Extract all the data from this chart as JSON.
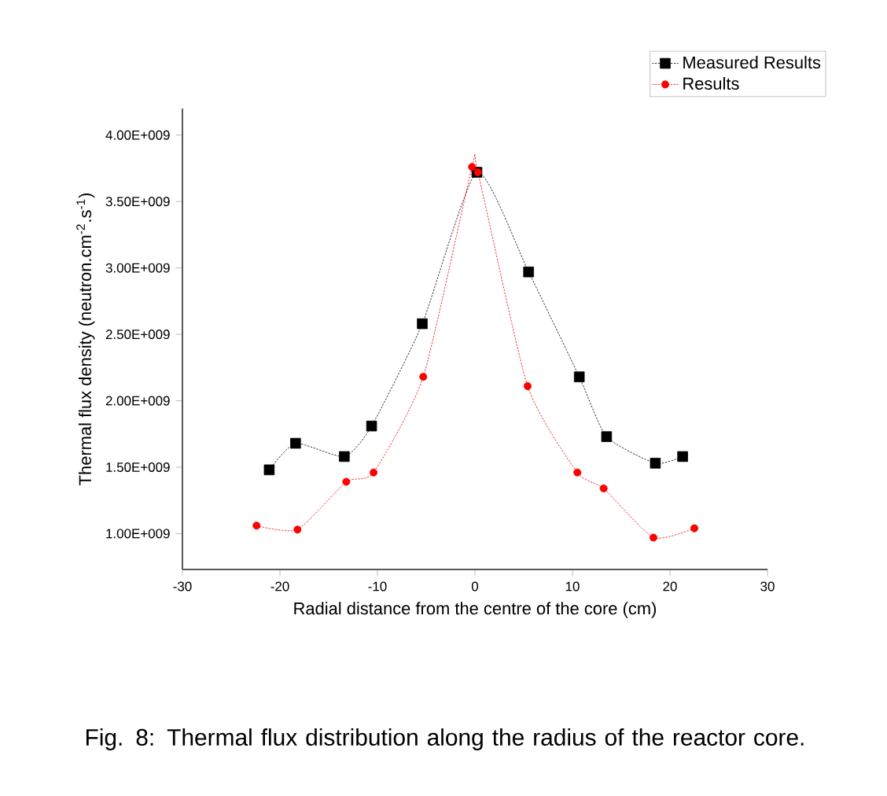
{
  "chart_data": {
    "type": "line",
    "xlabel": "Radial distance from the centre of the core (cm)",
    "ylabel": "Thermal flux density (neutron.cm$^{-2}$.s$^{-1}$)",
    "annotations": [
      "Fig. 8: Thermal flux distribution along the radius of the reactor core."
    ],
    "xlim": [
      -30,
      30
    ],
    "xticks": [
      -30,
      -20,
      -10,
      0,
      10,
      20,
      30
    ],
    "ylim": [
      730000000,
      4200000000
    ],
    "yticks": [
      {
        "value": 1000000000,
        "label": "1.00E+009"
      },
      {
        "value": 1500000000,
        "label": "1.50E+009"
      },
      {
        "value": 2000000000,
        "label": "2.00E+009"
      },
      {
        "value": 2500000000,
        "label": "2.50E+009"
      },
      {
        "value": 3000000000,
        "label": "3.00E+009"
      },
      {
        "value": 3500000000,
        "label": "3.50E+009"
      },
      {
        "value": 4000000000,
        "label": "4.00E+009"
      }
    ],
    "grid": false,
    "legend": "top right",
    "line_style": "dotted",
    "series": [
      {
        "name": "Measured Results",
        "color": "#000000",
        "marker": "square",
        "x": [
          -21.1,
          -18.4,
          -13.4,
          -10.6,
          -5.4,
          0.2,
          5.5,
          10.7,
          13.5,
          18.5,
          21.3
        ],
        "values": [
          1480000000,
          1680000000,
          1580000000,
          1810000000,
          2580000000,
          3720000000,
          2970000000,
          2180000000,
          1730000000,
          1530000000,
          1580000000
        ]
      },
      {
        "name": "Results",
        "color": "#ff0000",
        "marker": "circle",
        "x": [
          -22.4,
          -18.2,
          -13.2,
          -10.4,
          -5.3,
          -0.3,
          0.3,
          5.4,
          10.5,
          13.2,
          18.3,
          22.5
        ],
        "values": [
          1060000000,
          1030000000,
          1390000000,
          1460000000,
          2180000000,
          3760000000,
          3720000000,
          2110000000,
          1460000000,
          1340000000,
          970000000,
          1040000000
        ]
      }
    ]
  }
}
